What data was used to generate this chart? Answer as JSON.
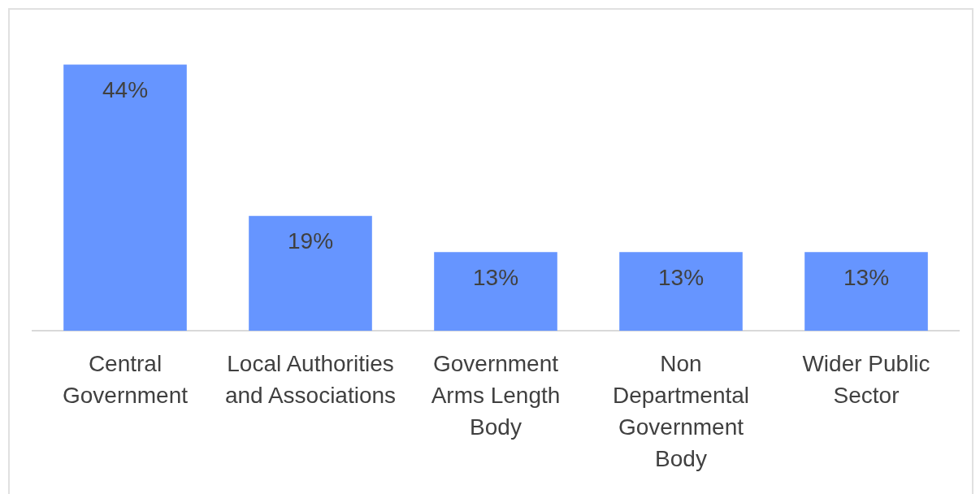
{
  "chart_data": {
    "type": "bar",
    "categories": [
      "Central Government",
      "Local Authorities and Associations",
      "Government Arms Length Body",
      "Non Departmental Government Body",
      "Wider Public Sector"
    ],
    "values": [
      44,
      19,
      13,
      13,
      13
    ],
    "value_labels": [
      "44%",
      "19%",
      "13%",
      "13%",
      "13%"
    ],
    "color": "#6695ff",
    "legend": false,
    "grid": false
  }
}
